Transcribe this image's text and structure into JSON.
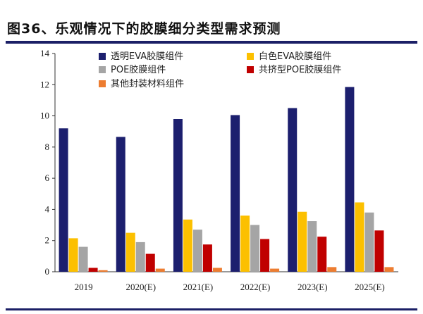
{
  "figure": {
    "title": "图36、乐观情况下的胶膜细分类型需求预测"
  },
  "colors": {
    "rule": "#1b1f66"
  },
  "chart_data": {
    "type": "bar",
    "categories": [
      "2019",
      "2020(E)",
      "2021(E)",
      "2022(E)",
      "2023(E)",
      "2025(E)"
    ],
    "ylim": [
      0,
      14
    ],
    "yticks": [
      0,
      2,
      4,
      6,
      8,
      10,
      12,
      14
    ],
    "grid": false,
    "legend_position": "top",
    "series": [
      {
        "name": "透明EVA胶膜组件",
        "color": "#1c1f6e",
        "values": [
          9.2,
          8.65,
          9.8,
          10.05,
          10.5,
          11.85
        ]
      },
      {
        "name": "白色EVA胶膜组件",
        "color": "#fcc000",
        "values": [
          2.15,
          2.5,
          3.35,
          3.6,
          3.85,
          4.45
        ]
      },
      {
        "name": "POE胶膜组件",
        "color": "#a5a5a5",
        "values": [
          1.6,
          1.9,
          2.7,
          3.0,
          3.25,
          3.8
        ]
      },
      {
        "name": "共挤型POE胶膜组件",
        "color": "#c00000",
        "values": [
          0.25,
          1.15,
          1.75,
          2.1,
          2.25,
          2.65
        ]
      },
      {
        "name": "其他封装材料组件",
        "color": "#ed7d31",
        "values": [
          0.1,
          0.2,
          0.25,
          0.2,
          0.3,
          0.3
        ]
      }
    ]
  }
}
